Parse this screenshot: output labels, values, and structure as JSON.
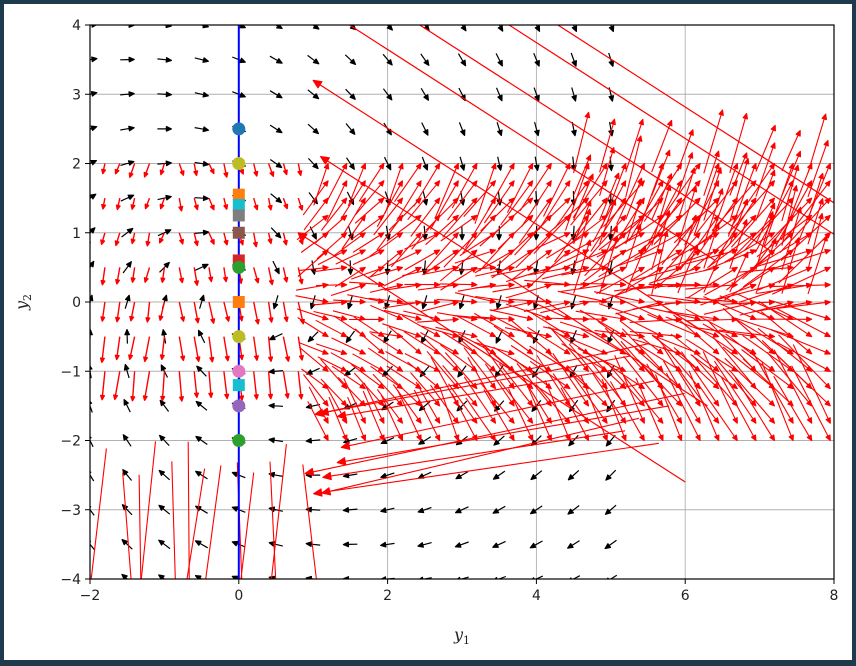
{
  "chart_data": {
    "type": "scatter",
    "xlim": [
      -2,
      8
    ],
    "ylim": [
      -4,
      4
    ],
    "xticks": [
      -2,
      0,
      2,
      4,
      6,
      8
    ],
    "yticks": [
      -4,
      -3,
      -2,
      -1,
      0,
      1,
      2,
      3,
      4
    ],
    "xtick_labels": [
      "−2",
      "0",
      "2",
      "4",
      "6",
      "8"
    ],
    "ytick_labels": [
      "−4",
      "−3",
      "−2",
      "−1",
      "0",
      "1",
      "2",
      "3",
      "4"
    ],
    "xlabel": {
      "var": "y",
      "sub": "1"
    },
    "ylabel": {
      "var": "y",
      "sub": "2"
    },
    "grid": true,
    "vertical_line": {
      "x": 0,
      "color": "#0000ff"
    },
    "initial_points": [
      {
        "y": 2.5,
        "color": "#1f77b4",
        "marker": "circle"
      },
      {
        "y": 2.0,
        "color": "#bcbd22",
        "marker": "circle"
      },
      {
        "y": 1.55,
        "color": "#ff7f0e",
        "marker": "square"
      },
      {
        "y": 1.4,
        "color": "#17becf",
        "marker": "square"
      },
      {
        "y": 1.25,
        "color": "#7f7f7f",
        "marker": "square"
      },
      {
        "y": 1.0,
        "color": "#8c564b",
        "marker": "square"
      },
      {
        "y": 0.6,
        "color": "#d62728",
        "marker": "square"
      },
      {
        "y": 0.5,
        "color": "#2ca02c",
        "marker": "circle"
      },
      {
        "y": 0.0,
        "color": "#ff7f0e",
        "marker": "square"
      },
      {
        "y": -0.5,
        "color": "#bcbd22",
        "marker": "circle"
      },
      {
        "y": -1.0,
        "color": "#e377c2",
        "marker": "circle"
      },
      {
        "y": -1.2,
        "color": "#17becf",
        "marker": "square"
      },
      {
        "y": -1.5,
        "color": "#9467bd",
        "marker": "circle"
      },
      {
        "y": -2.0,
        "color": "#2ca02c",
        "marker": "circle"
      }
    ],
    "field_colors": {
      "black": "#000000",
      "red": "#ff0000",
      "grid": "#b0b0b0"
    }
  }
}
